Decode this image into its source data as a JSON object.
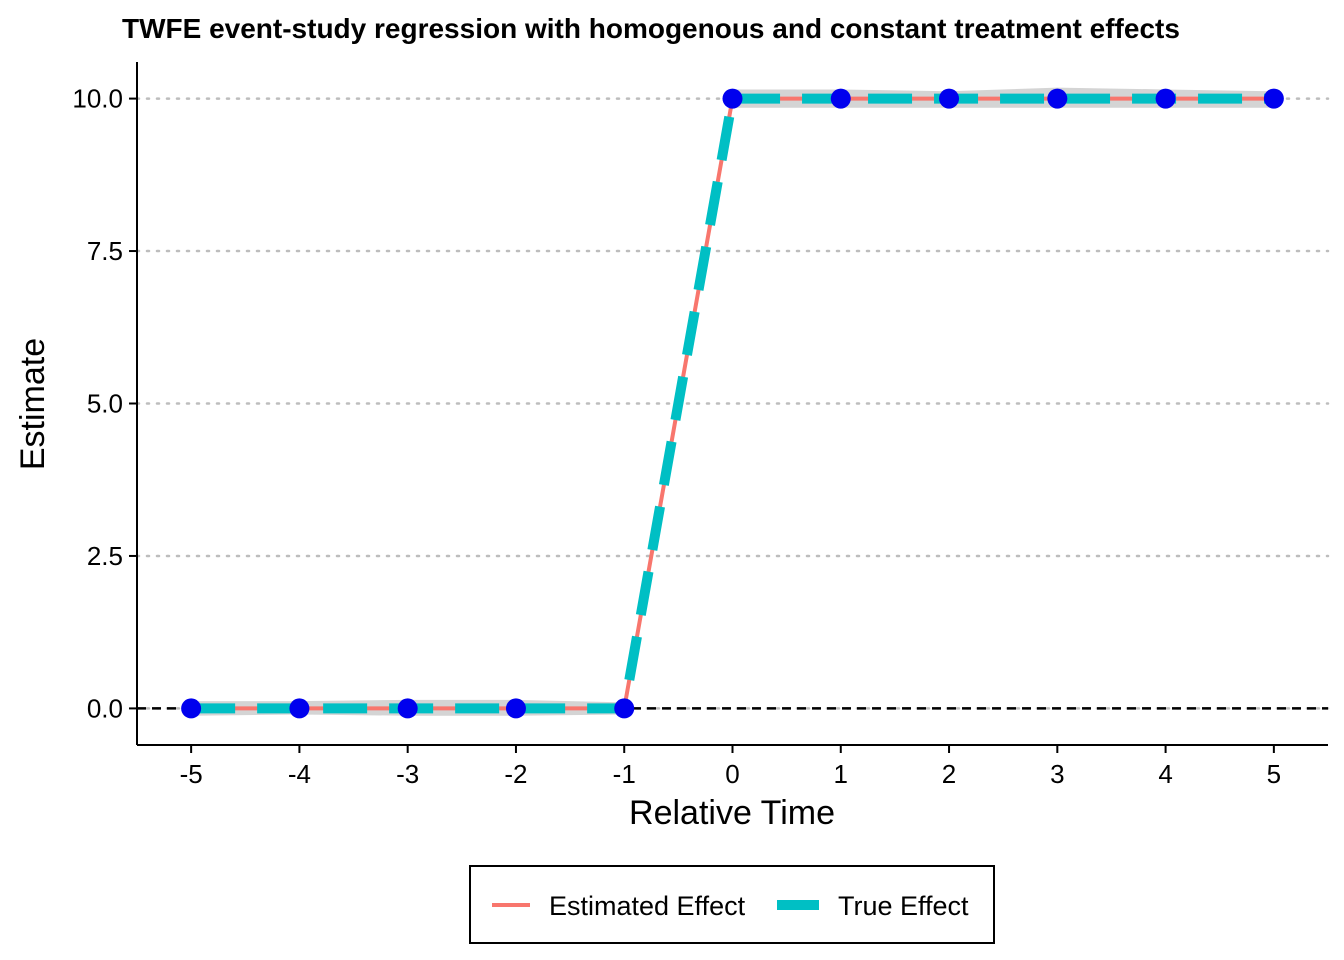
{
  "chart_data": {
    "type": "line",
    "title": "TWFE event-study regression with homogenous and constant treatment effects",
    "xlabel": "Relative Time",
    "ylabel": "Estimate",
    "x": [
      -5,
      -4,
      -3,
      -2,
      -1,
      0,
      1,
      2,
      3,
      4,
      5
    ],
    "x_tick_labels": [
      "-5",
      "-4",
      "-3",
      "-2",
      "-1",
      "0",
      "1",
      "2",
      "3",
      "4",
      "5"
    ],
    "y_ticks": [
      0.0,
      2.5,
      5.0,
      7.5,
      10.0
    ],
    "y_tick_labels": [
      "0.0",
      "2.5",
      "5.0",
      "7.5",
      "10.0"
    ],
    "xlim": [
      -5.5,
      5.5
    ],
    "ylim": [
      -0.6,
      10.6
    ],
    "grid": "horizontal dotted",
    "reference_line_y": 0,
    "series": [
      {
        "name": "Estimated Effect",
        "values": [
          0,
          0,
          0,
          0,
          0,
          10,
          10,
          10,
          10,
          10,
          10
        ],
        "ci_lower": [
          -0.12,
          -0.1,
          -0.12,
          -0.12,
          -0.1,
          9.85,
          9.85,
          9.85,
          9.85,
          9.85,
          9.85
        ],
        "ci_upper": [
          0.12,
          0.12,
          0.14,
          0.14,
          0.1,
          10.15,
          10.15,
          10.12,
          10.18,
          10.15,
          10.12
        ],
        "color": "#F8766D",
        "style": "solid"
      },
      {
        "name": "True Effect",
        "values": [
          0,
          0,
          0,
          0,
          0,
          10,
          10,
          10,
          10,
          10,
          10
        ],
        "color": "#00BFC4",
        "style": "dashed"
      }
    ],
    "point_color": "#0000EE",
    "ribbon_color": "#CCCCCC",
    "legend_position": "bottom"
  }
}
